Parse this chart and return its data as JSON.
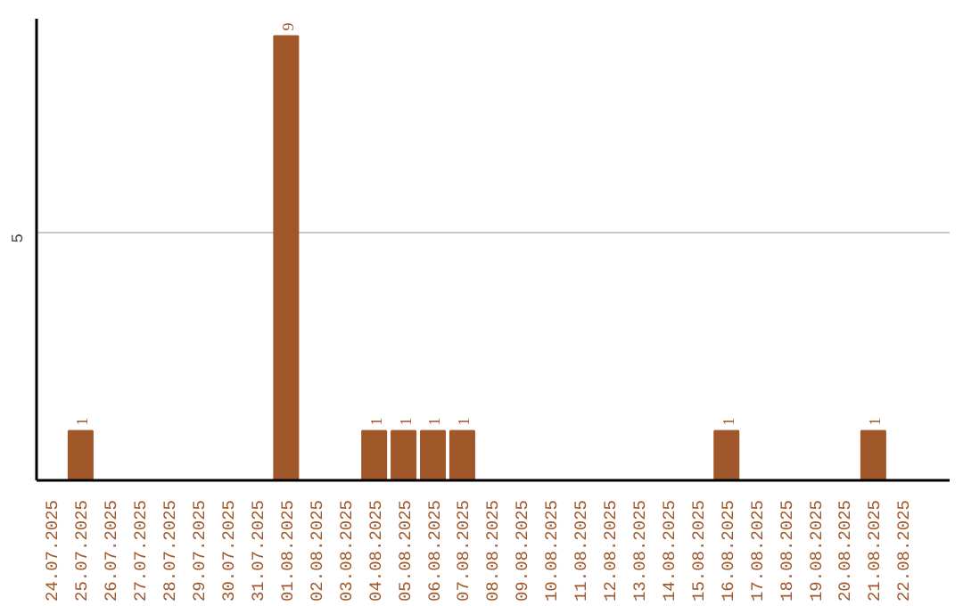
{
  "chart_data": {
    "type": "bar",
    "categories": [
      "24.07.2025",
      "25.07.2025",
      "26.07.2025",
      "27.07.2025",
      "28.07.2025",
      "29.07.2025",
      "30.07.2025",
      "31.07.2025",
      "01.08.2025",
      "02.08.2025",
      "03.08.2025",
      "04.08.2025",
      "05.08.2025",
      "06.08.2025",
      "07.08.2025",
      "08.08.2025",
      "09.08.2025",
      "10.08.2025",
      "11.08.2025",
      "12.08.2025",
      "13.08.2025",
      "14.08.2025",
      "15.08.2025",
      "16.08.2025",
      "17.08.2025",
      "18.08.2025",
      "19.08.2025",
      "20.08.2025",
      "21.08.2025",
      "22.08.2025"
    ],
    "values": [
      0,
      1,
      0,
      0,
      0,
      0,
      0,
      0,
      9,
      0,
      0,
      1,
      1,
      1,
      1,
      0,
      0,
      0,
      0,
      0,
      0,
      0,
      0,
      1,
      0,
      0,
      0,
      0,
      1,
      0
    ],
    "value_labels": [
      null,
      "1",
      null,
      null,
      null,
      null,
      null,
      null,
      "9",
      null,
      null,
      "1",
      "1",
      "1",
      "1",
      null,
      null,
      null,
      null,
      null,
      null,
      null,
      null,
      "1",
      null,
      null,
      null,
      null,
      "1",
      null
    ],
    "color": "#a0572a",
    "ylim": [
      0,
      9.35
    ],
    "yticks": [
      5
    ],
    "grid": "y"
  }
}
